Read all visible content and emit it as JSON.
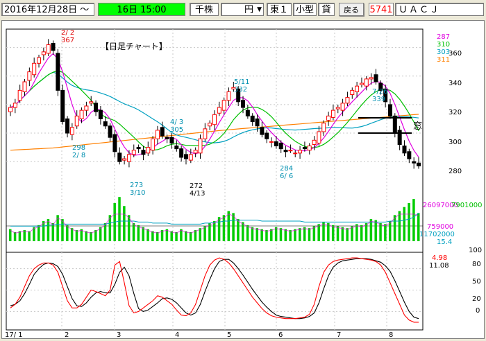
{
  "toolbar": {
    "date": "2016年12月28日 ～",
    "period": "16日 15:00",
    "unit": "千株",
    "currency": "円",
    "market": "東１",
    "size": "小型",
    "lend": "貸",
    "back": "戻る",
    "code": "5741",
    "name": "ＵＡＣＪ"
  },
  "chart_title": "【日足チャート】",
  "colors": {
    "ma5": "#e000e0",
    "ma10": "#00c000",
    "ma25": "#00a0c0",
    "ma75": "#ff8000",
    "volume": "#00cc00",
    "stoch_k": "#ff0000",
    "stoch_d": "#000000"
  },
  "legend": {
    "ma5": "287",
    "ma10": "310",
    "ma25": "303",
    "ma75": "311",
    "vol_left": "26097000",
    "vol_right": "7901000",
    "vol_mid": "759000",
    "vol_avg": "11702000",
    "vol_pct": "15.4",
    "stoch_k": "4.98",
    "stoch_d": "11.08"
  },
  "annotations": {
    "hi1_date": "2/ 2",
    "hi1_val": "367",
    "lo1_val": "298",
    "lo1_date": "2/ 8",
    "lo2_val": "273",
    "lo2_date": "3/10",
    "mid_date": "4/ 3",
    "mid_val": "305",
    "lo3_val": "272",
    "lo3_date": "4/13",
    "hi2_date": "5/11",
    "hi2_val": "332",
    "lo4_val": "284",
    "lo4_date": "6/ 6",
    "hi3_date": "7/26",
    "hi3_val": "339",
    "window": "窓"
  },
  "axes": {
    "price_ticks": [
      "360",
      "340",
      "320",
      "300",
      "280"
    ],
    "stoch_ticks": [
      "100",
      "80",
      "50",
      "20",
      "0"
    ],
    "x_labels": [
      "17/ 1",
      "2",
      "3",
      "4",
      "5",
      "6",
      "7",
      "8"
    ]
  },
  "chart_data": {
    "type": "candlestick",
    "ylim": [
      265,
      372
    ],
    "closes": [
      318,
      321,
      330,
      336,
      343,
      349,
      353,
      357,
      362,
      358,
      330,
      308,
      300,
      304,
      312,
      316,
      319,
      322,
      315,
      310,
      305,
      297,
      287,
      280,
      282,
      285,
      288,
      289,
      285,
      290,
      296,
      302,
      298,
      296,
      293,
      289,
      283,
      282,
      285,
      288,
      296,
      303,
      307,
      313,
      318,
      323,
      329,
      332,
      322,
      318,
      312,
      308,
      305,
      299,
      296,
      294,
      291,
      289,
      287,
      288,
      286,
      288,
      289,
      291,
      295,
      301,
      307,
      312,
      316,
      318,
      321,
      325,
      330,
      333,
      335,
      338,
      339,
      336,
      330,
      322,
      312,
      300,
      292,
      286,
      282,
      279,
      277
    ],
    "bar_intervals": {
      "volume": [
        12,
        9,
        10,
        11,
        10,
        14,
        16,
        20,
        22,
        18,
        26,
        22,
        16,
        13,
        11,
        12,
        10,
        9,
        11,
        14,
        18,
        26,
        38,
        44,
        35,
        26,
        18,
        16,
        14,
        12,
        10,
        9,
        11,
        12,
        10,
        9,
        12,
        10,
        9,
        11,
        13,
        15,
        18,
        20,
        24,
        26,
        30,
        28,
        22,
        19,
        16,
        14,
        13,
        12,
        11,
        12,
        14,
        13,
        12,
        11,
        12,
        13,
        14,
        13,
        15,
        17,
        19,
        18,
        16,
        15,
        14,
        13,
        15,
        17,
        16,
        18,
        22,
        21,
        18,
        17,
        20,
        26,
        30,
        34,
        38,
        42,
        28
      ],
      "vol_ma": [
        15,
        15,
        15,
        15,
        15,
        15,
        15,
        15,
        16,
        16,
        17,
        17,
        17,
        17,
        17,
        17,
        17,
        17,
        17,
        17,
        17,
        18,
        19,
        20,
        20,
        20,
        20,
        19,
        19,
        19,
        18,
        18,
        18,
        18,
        17,
        17,
        17,
        17,
        17,
        17,
        17,
        18,
        18,
        19,
        19,
        20,
        20,
        21,
        21,
        21,
        21,
        21,
        21,
        20,
        20,
        20,
        20,
        20,
        20,
        20,
        20,
        20,
        19,
        19,
        19,
        19,
        19,
        19,
        19,
        19,
        19,
        19,
        19,
        19,
        19,
        19,
        19,
        19,
        19,
        19,
        20,
        20,
        20,
        21,
        22,
        24,
        28
      ],
      "stoch_k": [
        25,
        30,
        40,
        55,
        70,
        80,
        85,
        88,
        88,
        85,
        75,
        55,
        35,
        25,
        25,
        30,
        40,
        50,
        48,
        45,
        42,
        50,
        85,
        90,
        60,
        28,
        18,
        20,
        25,
        30,
        35,
        42,
        40,
        35,
        30,
        22,
        15,
        14,
        18,
        30,
        50,
        70,
        85,
        92,
        95,
        93,
        88,
        80,
        70,
        60,
        50,
        40,
        32,
        24,
        18,
        14,
        12,
        11,
        10,
        10,
        10,
        11,
        12,
        16,
        30,
        55,
        75,
        85,
        90,
        92,
        93,
        94,
        95,
        95,
        94,
        93,
        92,
        90,
        85,
        75,
        60,
        45,
        30,
        15,
        8,
        5,
        5
      ],
      "stoch_d": [
        28,
        30,
        35,
        45,
        58,
        72,
        80,
        86,
        88,
        87,
        83,
        72,
        55,
        38,
        28,
        27,
        32,
        40,
        46,
        48,
        46,
        46,
        58,
        75,
        82,
        70,
        45,
        24,
        20,
        22,
        27,
        32,
        38,
        39,
        37,
        32,
        25,
        18,
        15,
        18,
        30,
        48,
        65,
        80,
        90,
        93,
        93,
        88,
        80,
        71,
        61,
        51,
        42,
        33,
        26,
        20,
        15,
        13,
        12,
        11,
        10,
        10,
        11,
        13,
        18,
        32,
        52,
        70,
        82,
        88,
        91,
        92,
        93,
        94,
        94,
        94,
        93,
        91,
        89,
        84,
        76,
        63,
        48,
        33,
        20,
        12,
        10
      ]
    }
  }
}
